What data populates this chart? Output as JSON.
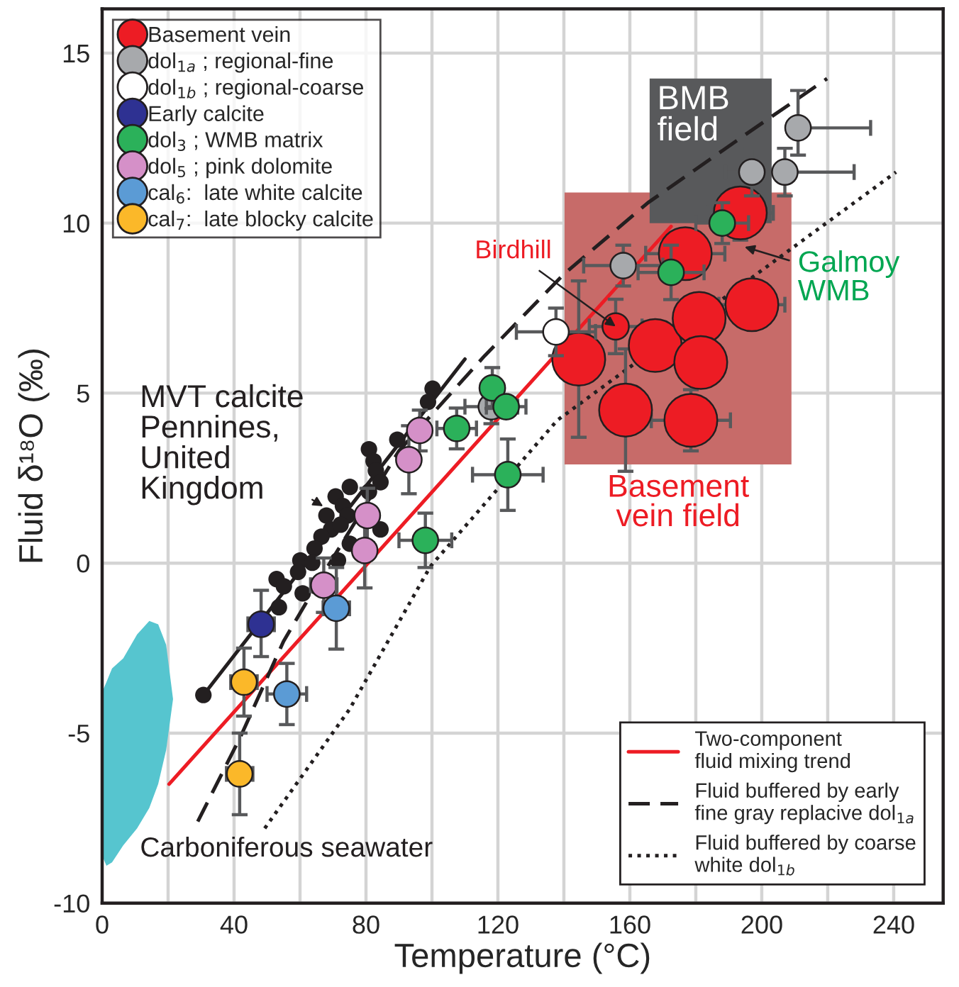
{
  "chart_data": {
    "type": "scatter",
    "xlabel": "Temperature (°C)",
    "ylabel": "Fluid δ¹⁸O (‰)",
    "xlim": [
      0,
      255
    ],
    "ylim": [
      -10,
      16.3
    ],
    "xticks": [
      0,
      {
        "value": 20,
        "label": null
      },
      40,
      {
        "value": 60,
        "label": null
      },
      80,
      {
        "value": 100,
        "label": null
      },
      120,
      {
        "value": 140,
        "label": null
      },
      160,
      {
        "value": 180,
        "label": null
      },
      200,
      {
        "value": 220,
        "label": null
      },
      240
    ],
    "yticks": [
      -10,
      -5,
      0,
      5,
      10,
      15
    ],
    "grid": true,
    "legend": "top left",
    "series": [
      {
        "type": "line",
        "color": "#231f20",
        "line_style": "solid",
        "x": [
          30.7,
          110
        ],
        "values": [
          -3.88,
          6.0
        ]
      },
      {
        "type": "line",
        "name": "Two-component\nfluid mixing trend",
        "color": "#ed1c24",
        "line_style": "solid",
        "x": [
          20.3,
          172.5
        ],
        "values": [
          -6.5,
          9.9
        ]
      },
      {
        "type": "line",
        "name": "Fluid buffered by early\nfine gray replacive dol$_{1a}$",
        "color": "#231f20",
        "line_style": "dashed",
        "x": [
          29,
          42,
          55,
          66.5,
          90,
          116,
          140,
          165.5,
          195,
          219.8
        ],
        "values": [
          -7.6,
          -5.1,
          -2.3,
          -0.4,
          3.3,
          6.1,
          8.5,
          10.6,
          12.6,
          14.25
        ]
      },
      {
        "type": "line",
        "name": "Fluid buffered by coarse\nwhite dol$_{1b}$",
        "color": "#231f20",
        "line_style": "dotted",
        "x": [
          49.3,
          75,
          99.5,
          138,
          190,
          240.7
        ],
        "values": [
          -7.8,
          -4.3,
          -0.1,
          4.2,
          7.9,
          11.5
        ]
      },
      {
        "type": "scatter",
        "marker": "circle",
        "color": "#231f20",
        "x": [
          100.2,
          98.8,
          89.5,
          80.9,
          82.3,
          83.0,
          84.4,
          80.9,
          75.1,
          70.8,
          73.0,
          68.0,
          74.4,
          69.4,
          72.3,
          84.4,
          75.1,
          66.5,
          64.4,
          60.1,
          63.7,
          59.4,
          71.5,
          60.8,
          52.9,
          55.1,
          53.6,
          30.7
        ],
        "values": [
          5.13,
          4.74,
          3.63,
          3.35,
          3.0,
          2.72,
          2.38,
          2.1,
          2.24,
          1.96,
          1.68,
          1.4,
          1.4,
          0.99,
          1.13,
          0.99,
          0.57,
          0.78,
          0.43,
          0.08,
          0.01,
          -0.26,
          0.08,
          -0.89,
          -0.47,
          -0.68,
          -1.3,
          -3.88
        ]
      },
      {
        "type": "bubble",
        "marker": "circle",
        "name": "Basement vein",
        "color": "#ed1c24",
        "x": [
          193.5,
          176.8,
          155.7,
          144.5,
          167.7,
          181,
          197,
          181.5,
          158.7,
          178.5
        ],
        "values": [
          10.3,
          9.1,
          6.96,
          6.0,
          6.4,
          7.2,
          7.6,
          5.9,
          4.5,
          4.2
        ],
        "sizes": [
          1,
          1,
          0.25,
          1,
          1,
          1,
          1,
          1,
          1,
          1
        ],
        "xerrors": [
          10,
          12,
          8,
          null,
          null,
          null,
          10,
          null,
          null,
          12
        ],
        "errors": [
          0.8,
          null,
          0.8,
          2.3,
          null,
          null,
          null,
          null,
          1.8,
          0.9
        ]
      },
      {
        "type": "scatter",
        "marker": "circle",
        "name": "dol$_{1a}$ ; regional-fine",
        "color": "#a7a9ac",
        "x": [
          211,
          197,
          207,
          158,
          118
        ],
        "values": [
          12.8,
          11.5,
          11.5,
          8.75,
          4.6
        ],
        "xerrors": [
          [
            211,
            233
          ],
          8,
          [
            195,
            228
          ],
          12,
          8
        ],
        "errors": [
          [
            12.0,
            13.9
          ],
          0.7,
          0.7,
          0.6,
          0.5
        ]
      },
      {
        "type": "scatter",
        "marker": "circle",
        "name": "dol$_{1b}$ ; regional-coarse",
        "color": "#ffffff",
        "x": [
          137.6
        ],
        "values": [
          6.8
        ],
        "xerrors": [
          12
        ],
        "errors": [
          0.7
        ]
      },
      {
        "type": "scatter",
        "marker": "circle",
        "name": "Early calcite",
        "color": "#2e3192",
        "x": [
          48.2
        ],
        "values": [
          -1.8
        ],
        "xerrors": [
          4
        ],
        "errors": [
          [
            -2.75,
            -0.8
          ]
        ]
      },
      {
        "type": "scatter",
        "marker": "circle",
        "name": "dol$_{3}$ ; WMB matrix",
        "color": "#2bb15a",
        "x": [
          118.3,
          107.5,
          123,
          98,
          122.5,
          172.5,
          188
        ],
        "values": [
          5.15,
          3.96,
          2.6,
          0.67,
          4.6,
          8.55,
          10.0
        ],
        "xerrors": [
          null,
          6,
          10.7,
          8,
          6,
          10,
          8
        ],
        "errors": [
          0.6,
          0.6,
          1.05,
          0.8,
          null,
          0.8,
          0.6
        ]
      },
      {
        "type": "scatter",
        "marker": "circle",
        "name": "dol$_{5}$ ; pink dolomite",
        "color": "#d590c8",
        "x": [
          96.3,
          93,
          80.4,
          79.6,
          67.2
        ],
        "values": [
          3.9,
          3.04,
          1.4,
          0.37,
          -0.65
        ],
        "xerrors": [
          null,
          null,
          null,
          null,
          4
        ],
        "errors": [
          0.6,
          1.0,
          0.8,
          1.1,
          0.8
        ]
      },
      {
        "type": "scatter",
        "marker": "circle",
        "name": "cal$_{6}$:  late white calcite",
        "color": "#5b9bd5",
        "x": [
          71,
          56
        ],
        "values": [
          -1.33,
          -3.85
        ],
        "xerrors": [
          4,
          6
        ],
        "errors": [
          1.2,
          0.9
        ]
      },
      {
        "type": "scatter",
        "marker": "circle",
        "name": "cal$_{7}$:  late blocky calcite",
        "color": "#fbb829",
        "x": [
          43,
          41.7
        ],
        "values": [
          -3.5,
          -6.2
        ],
        "xerrors": [
          4,
          4
        ],
        "errors": [
          1.0,
          1.2
        ]
      }
    ],
    "annotations": [
      {
        "text": "MVT calcite\nPennines,\nUnited\nKingdom",
        "x": 67,
        "y": 1.67
      },
      {
        "text": "Birdhill",
        "x": 155.7,
        "y": 6.96
      },
      {
        "text": "Galmoy\nWMB",
        "x": 194.8,
        "y": 9.3
      },
      "Basement\nvein field",
      "BMB\nfield",
      "Carboniferous seawater"
    ]
  }
}
